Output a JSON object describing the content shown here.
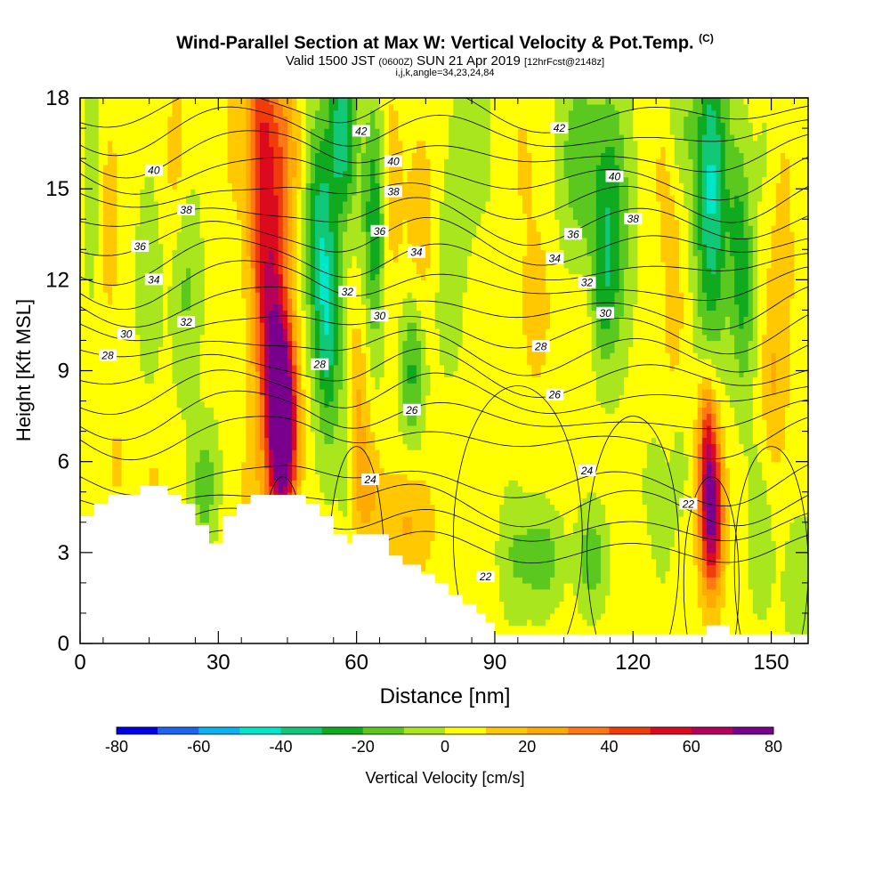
{
  "header": {
    "title": "Wind-Parallel Section at Max W: Vertical Velocity & Pot.Temp.",
    "title_mark": "(C)",
    "valid_a": "Valid 1500 JST",
    "valid_b": "(0600Z)",
    "valid_c": "SUN 21 Apr 2019",
    "valid_d": "[12hrFcst@2148z]",
    "indices": "i,j,k,angle=34,23,24,84"
  },
  "chart_data": {
    "type": "heatmap",
    "xlabel": "Distance [nm]",
    "ylabel": "Height [Kft MSL]",
    "xlim": [
      0,
      158
    ],
    "ylim": [
      0,
      18
    ],
    "x_ticks": [
      0,
      30,
      60,
      90,
      120,
      150
    ],
    "y_ticks": [
      0,
      3,
      6,
      9,
      12,
      15,
      18
    ],
    "colorbar": {
      "label": "Vertical Velocity [cm/s]",
      "range": [
        -80,
        80
      ],
      "step": 10,
      "tick_values": [
        -80,
        -60,
        -40,
        -20,
        0,
        20,
        40,
        60,
        80
      ],
      "colors": [
        "#0000e6",
        "#1e64f0",
        "#0ab4f0",
        "#00e6c8",
        "#10c878",
        "#10aa20",
        "#5ac81e",
        "#aae61e",
        "#ffff00",
        "#ffc800",
        "#ffaa00",
        "#ff7814",
        "#f03c0a",
        "#dc0a1e",
        "#b4005a",
        "#78008c"
      ]
    },
    "terrain": [
      [
        0,
        4.2
      ],
      [
        3,
        4.6
      ],
      [
        6,
        4.9
      ],
      [
        13,
        5.2
      ],
      [
        19,
        4.9
      ],
      [
        22,
        4.6
      ],
      [
        25,
        3.9
      ],
      [
        28,
        3.3
      ],
      [
        31,
        4.2
      ],
      [
        34,
        4.6
      ],
      [
        37,
        4.9
      ],
      [
        45,
        4.9
      ],
      [
        49,
        4.6
      ],
      [
        52,
        4.2
      ],
      [
        55,
        3.6
      ],
      [
        58,
        3.3
      ],
      [
        59,
        3.6
      ],
      [
        64,
        3.6
      ],
      [
        67,
        2.9
      ],
      [
        70,
        2.6
      ],
      [
        74,
        2.3
      ],
      [
        77,
        2.0
      ],
      [
        80,
        1.6
      ],
      [
        83,
        1.3
      ],
      [
        86,
        1.0
      ],
      [
        88,
        0.7
      ],
      [
        90,
        0.3
      ],
      [
        133,
        0.3
      ],
      [
        136,
        0.6
      ],
      [
        141,
        0.3
      ],
      [
        158,
        0.3
      ]
    ],
    "theta_labels": [
      {
        "value": "42",
        "x": 61,
        "y": 16.9
      },
      {
        "value": "42",
        "x": 104,
        "y": 17.0
      },
      {
        "value": "40",
        "x": 16,
        "y": 15.6
      },
      {
        "value": "40",
        "x": 68,
        "y": 15.9
      },
      {
        "value": "40",
        "x": 116,
        "y": 15.4
      },
      {
        "value": "38",
        "x": 23,
        "y": 14.3
      },
      {
        "value": "38",
        "x": 68,
        "y": 14.9
      },
      {
        "value": "38",
        "x": 120,
        "y": 14.0
      },
      {
        "value": "36",
        "x": 13,
        "y": 13.1
      },
      {
        "value": "36",
        "x": 65,
        "y": 13.6
      },
      {
        "value": "36",
        "x": 107,
        "y": 13.5
      },
      {
        "value": "34",
        "x": 16,
        "y": 12.0
      },
      {
        "value": "34",
        "x": 73,
        "y": 12.9
      },
      {
        "value": "34",
        "x": 103,
        "y": 12.7
      },
      {
        "value": "32",
        "x": 23,
        "y": 10.6
      },
      {
        "value": "32",
        "x": 58,
        "y": 11.6
      },
      {
        "value": "32",
        "x": 110,
        "y": 11.9
      },
      {
        "value": "30",
        "x": 10,
        "y": 10.2
      },
      {
        "value": "30",
        "x": 65,
        "y": 10.8
      },
      {
        "value": "30",
        "x": 114,
        "y": 10.9
      },
      {
        "value": "28",
        "x": 6,
        "y": 9.5
      },
      {
        "value": "28",
        "x": 52,
        "y": 9.2
      },
      {
        "value": "28",
        "x": 100,
        "y": 9.8
      },
      {
        "value": "26",
        "x": 72,
        "y": 7.7
      },
      {
        "value": "26",
        "x": 103,
        "y": 8.2
      },
      {
        "value": "24",
        "x": 63,
        "y": 5.4
      },
      {
        "value": "24",
        "x": 110,
        "y": 5.7
      },
      {
        "value": "22",
        "x": 88,
        "y": 2.2
      },
      {
        "value": "22",
        "x": 132,
        "y": 4.6
      }
    ]
  }
}
